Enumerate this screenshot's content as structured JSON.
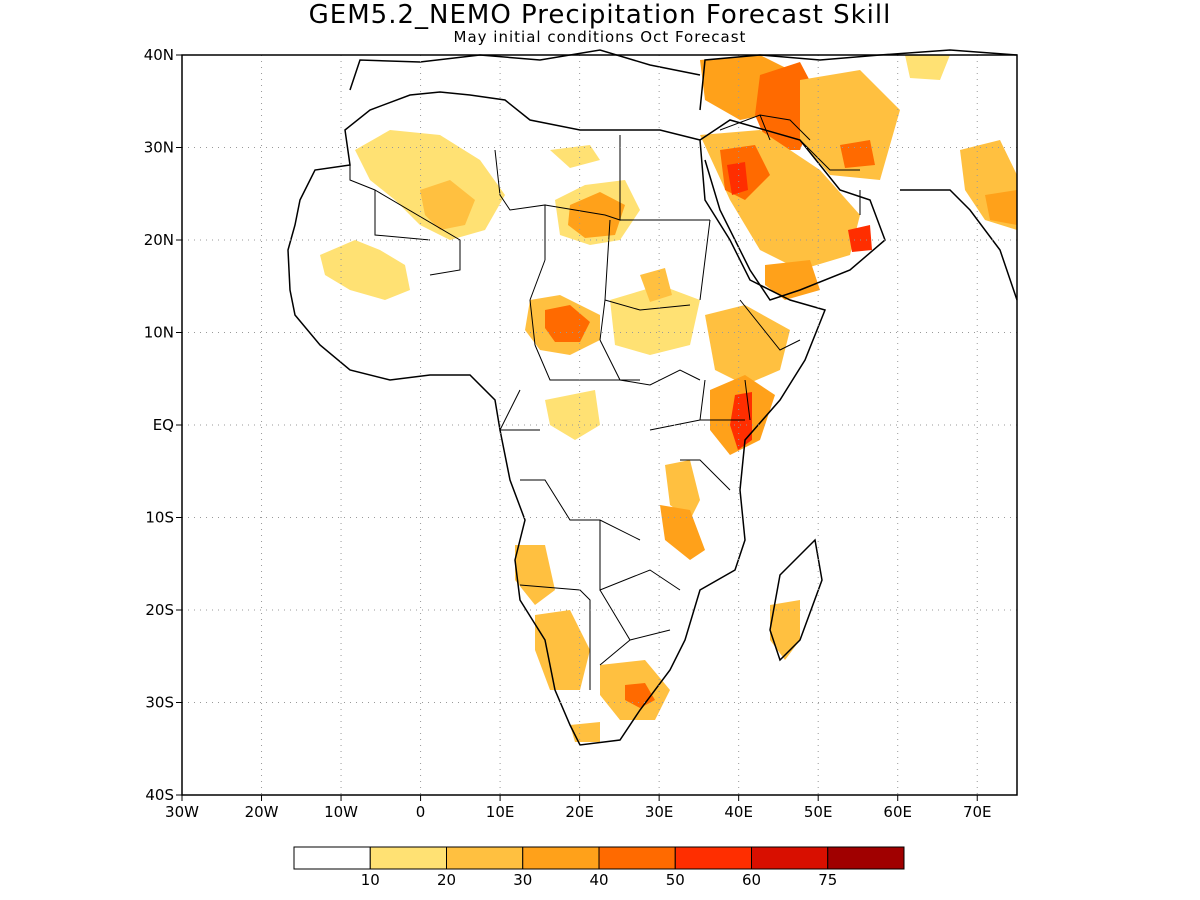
{
  "header": {
    "title": "GEM5.2_NEMO Precipitation Forecast Skill",
    "subtitle": "May initial conditions  Oct Forecast"
  },
  "map": {
    "lon_range": [
      -30,
      75
    ],
    "lat_range": [
      -40,
      40
    ],
    "x_ticks": [
      {
        "value": -30,
        "label": "30W"
      },
      {
        "value": -20,
        "label": "20W"
      },
      {
        "value": -10,
        "label": "10W"
      },
      {
        "value": 0,
        "label": "0"
      },
      {
        "value": 10,
        "label": "10E"
      },
      {
        "value": 20,
        "label": "20E"
      },
      {
        "value": 30,
        "label": "30E"
      },
      {
        "value": 40,
        "label": "40E"
      },
      {
        "value": 50,
        "label": "50E"
      },
      {
        "value": 60,
        "label": "60E"
      },
      {
        "value": 70,
        "label": "70E"
      }
    ],
    "y_ticks": [
      {
        "value": 40,
        "label": "40N"
      },
      {
        "value": 30,
        "label": "30N"
      },
      {
        "value": 20,
        "label": "20N"
      },
      {
        "value": 10,
        "label": "10N"
      },
      {
        "value": 0,
        "label": "EQ"
      },
      {
        "value": -10,
        "label": "10S"
      },
      {
        "value": -20,
        "label": "20S"
      },
      {
        "value": -30,
        "label": "30S"
      },
      {
        "value": -40,
        "label": "40S"
      }
    ],
    "grid": "dotted"
  },
  "legend": {
    "colors": [
      "#ffffff",
      "#ffe173",
      "#ffc040",
      "#ffa11a",
      "#ff6a00",
      "#ff2e00",
      "#d80f00",
      "#a00000"
    ],
    "labels": [
      "10",
      "20",
      "30",
      "40",
      "50",
      "60",
      "75"
    ]
  }
}
